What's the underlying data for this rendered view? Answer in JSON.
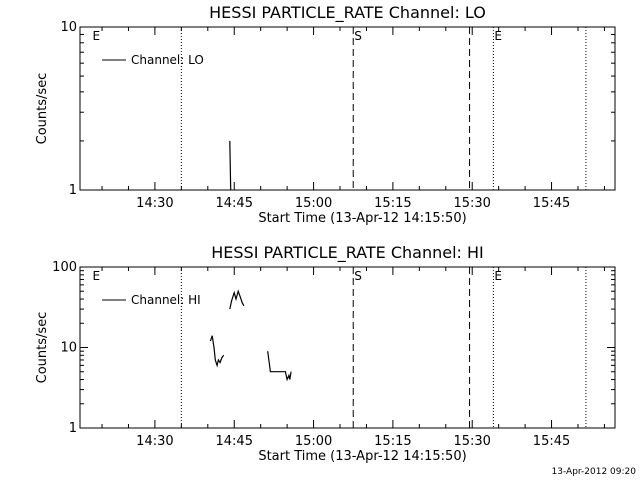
{
  "chart_data": [
    {
      "type": "line",
      "title": "HESSI PARTICLE_RATE Channel: LO",
      "xlabel": "Start Time (13-Apr-12 14:15:50)",
      "ylabel": "Counts/sec",
      "y_scale": "log",
      "ylim": [
        1,
        10
      ],
      "y_ticks": [
        {
          "v": 1,
          "label": "1"
        },
        {
          "v": 10,
          "label": "10"
        }
      ],
      "x_ticks": [
        "14:30",
        "14:45",
        "15:00",
        "15:15",
        "15:30",
        "15:45"
      ],
      "legend": {
        "label": "Channel: LO",
        "position": "top-left"
      },
      "series": [
        {
          "name": "Channel: LO",
          "points": [
            [
              "14:44:10",
              2.0
            ],
            [
              "14:44:20",
              1.0
            ]
          ]
        }
      ],
      "markers": [
        {
          "time": "14:18:00",
          "style": "none",
          "label": "E"
        },
        {
          "time": "14:35:00",
          "style": "dotted",
          "label": ""
        },
        {
          "time": "15:07:30",
          "style": "dashed",
          "label": "S"
        },
        {
          "time": "15:29:30",
          "style": "dashed",
          "label": ""
        },
        {
          "time": "15:34:00",
          "style": "dotted",
          "label": "E"
        },
        {
          "time": "15:51:30",
          "style": "dotted",
          "label": ""
        }
      ],
      "grid": false
    },
    {
      "type": "line",
      "title": "HESSI PARTICLE_RATE Channel: HI",
      "xlabel": "Start Time (13-Apr-12 14:15:50)",
      "ylabel": "Counts/sec",
      "y_scale": "log",
      "ylim": [
        1,
        100
      ],
      "y_ticks": [
        {
          "v": 1,
          "label": "1"
        },
        {
          "v": 10,
          "label": "10"
        },
        {
          "v": 100,
          "label": "100"
        }
      ],
      "x_ticks": [
        "14:30",
        "14:45",
        "15:00",
        "15:15",
        "15:30",
        "15:45"
      ],
      "legend": {
        "label": "Channel: HI",
        "position": "top-left"
      },
      "series": [
        {
          "name": "Channel: HI",
          "segments": [
            [
              [
                "14:40:30",
                12
              ],
              [
                "14:40:50",
                14
              ],
              [
                "14:41:10",
                10
              ],
              [
                "14:41:25",
                7
              ],
              [
                "14:41:45",
                6
              ],
              [
                "14:42:00",
                7
              ],
              [
                "14:42:20",
                6.5
              ],
              [
                "14:42:40",
                7.5
              ],
              [
                "14:43:00",
                8
              ]
            ],
            [
              [
                "14:44:10",
                30
              ],
              [
                "14:44:30",
                38
              ],
              [
                "14:45:00",
                48
              ],
              [
                "14:45:20",
                40
              ],
              [
                "14:45:45",
                50
              ],
              [
                "14:46:10",
                42
              ],
              [
                "14:46:30",
                36
              ],
              [
                "14:46:50",
                33
              ]
            ],
            [
              [
                "14:51:20",
                9
              ],
              [
                "14:51:50",
                5
              ],
              [
                "14:52:40",
                5
              ],
              [
                "14:53:40",
                5
              ],
              [
                "14:54:40",
                5
              ],
              [
                "14:55:00",
                4
              ],
              [
                "14:55:20",
                4.5
              ],
              [
                "14:55:30",
                4
              ],
              [
                "14:55:45",
                5
              ]
            ]
          ]
        }
      ],
      "markers": [
        {
          "time": "14:18:00",
          "style": "none",
          "label": "E"
        },
        {
          "time": "14:35:00",
          "style": "dotted",
          "label": ""
        },
        {
          "time": "15:07:30",
          "style": "dashed",
          "label": "S"
        },
        {
          "time": "15:29:30",
          "style": "dashed",
          "label": ""
        },
        {
          "time": "15:34:00",
          "style": "dotted",
          "label": "E"
        },
        {
          "time": "15:51:30",
          "style": "dotted",
          "label": ""
        }
      ],
      "grid": false
    }
  ],
  "footer": "13-Apr-2012 09:20"
}
